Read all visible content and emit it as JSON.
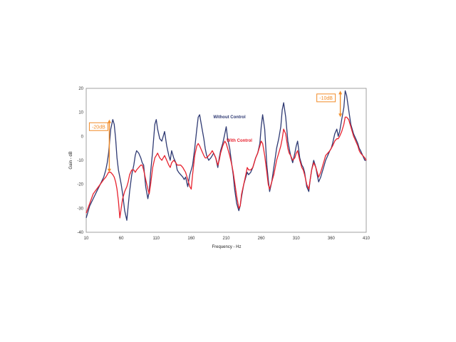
{
  "chart_data": {
    "type": "line",
    "title": "",
    "xlabel": "Frequency - Hz",
    "ylabel": "Gain - dB",
    "xlim": [
      10,
      410
    ],
    "ylim": [
      -40,
      20
    ],
    "xticks": [
      10,
      60,
      110,
      160,
      210,
      260,
      310,
      360,
      410
    ],
    "yticks": [
      -40,
      -30,
      -20,
      -10,
      0,
      10,
      20
    ],
    "minor_x_step": 10,
    "grid": true,
    "series": [
      {
        "name": "Without Control",
        "color": "#2f3a73",
        "x": [
          10,
          15,
          20,
          25,
          30,
          35,
          38,
          40,
          42,
          45,
          48,
          50,
          52,
          54,
          56,
          58,
          60,
          62,
          65,
          68,
          70,
          72,
          75,
          78,
          80,
          82,
          85,
          88,
          90,
          92,
          95,
          98,
          100,
          102,
          105,
          108,
          110,
          112,
          115,
          118,
          120,
          122,
          125,
          128,
          130,
          132,
          135,
          138,
          140,
          142,
          145,
          148,
          150,
          152,
          155,
          158,
          160,
          162,
          165,
          168,
          170,
          172,
          175,
          178,
          180,
          182,
          185,
          188,
          190,
          192,
          195,
          198,
          200,
          202,
          205,
          208,
          210,
          212,
          215,
          218,
          220,
          222,
          225,
          228,
          230,
          232,
          235,
          238,
          240,
          242,
          245,
          248,
          250,
          252,
          255,
          258,
          260,
          262,
          265,
          268,
          270,
          272,
          275,
          278,
          280,
          282,
          285,
          288,
          290,
          292,
          295,
          298,
          300,
          302,
          305,
          308,
          310,
          312,
          315,
          318,
          320,
          322,
          325,
          328,
          330,
          332,
          335,
          338,
          340,
          342,
          345,
          348,
          350,
          352,
          355,
          358,
          360,
          362,
          365,
          368,
          370,
          372,
          375,
          378,
          380,
          382,
          385,
          388,
          390,
          392,
          395,
          398,
          400,
          402,
          405,
          408,
          410
        ],
        "y": [
          -34,
          -29,
          -26,
          -23,
          -20,
          -17,
          -14,
          -11,
          -7,
          3,
          7,
          5,
          -1,
          -9,
          -14,
          -17,
          -20,
          -24,
          -31,
          -35,
          -29,
          -23,
          -16,
          -12,
          -8,
          -6,
          -7,
          -9,
          -11,
          -12,
          -21,
          -26,
          -23,
          -15,
          -6,
          5,
          7,
          3,
          -1,
          -2,
          0,
          2,
          -4,
          -8,
          -10,
          -6,
          -9,
          -11,
          -14,
          -15,
          -16,
          -17,
          -18,
          -17,
          -21,
          -16,
          -14,
          -12,
          -5,
          3,
          8,
          9,
          4,
          -1,
          -5,
          -8,
          -10,
          -9,
          -8,
          -7,
          -9,
          -13,
          -9,
          -6,
          -3,
          1,
          4,
          -1,
          -5,
          -12,
          -16,
          -22,
          -28,
          -31,
          -29,
          -25,
          -20,
          -17,
          -15,
          -16,
          -15,
          -13,
          -11,
          -9,
          -7,
          -3,
          4,
          9,
          3,
          -12,
          -18,
          -23,
          -19,
          -13,
          -9,
          -5,
          -1,
          4,
          11,
          14,
          8,
          -2,
          -5,
          -8,
          -11,
          -7,
          -4,
          -2,
          -9,
          -12,
          -13,
          -15,
          -21,
          -23,
          -18,
          -14,
          -10,
          -13,
          -16,
          -19,
          -17,
          -14,
          -12,
          -10,
          -8,
          -6,
          -5,
          -3,
          1,
          3,
          0,
          2,
          7,
          12,
          19,
          17,
          11,
          5,
          3,
          1,
          -1,
          -3,
          -5,
          -6,
          -8,
          -10,
          -10
        ]
      },
      {
        "name": "With Control",
        "color": "#e8222e",
        "x": [
          10,
          15,
          20,
          25,
          30,
          35,
          38,
          40,
          42,
          45,
          48,
          50,
          52,
          54,
          56,
          58,
          60,
          62,
          65,
          68,
          70,
          72,
          75,
          78,
          80,
          82,
          85,
          88,
          90,
          92,
          95,
          98,
          100,
          102,
          105,
          108,
          110,
          112,
          115,
          118,
          120,
          122,
          125,
          128,
          130,
          132,
          135,
          138,
          140,
          142,
          145,
          148,
          150,
          152,
          155,
          158,
          160,
          162,
          165,
          168,
          170,
          172,
          175,
          178,
          180,
          182,
          185,
          188,
          190,
          192,
          195,
          198,
          200,
          202,
          205,
          208,
          210,
          212,
          215,
          218,
          220,
          222,
          225,
          228,
          230,
          232,
          235,
          238,
          240,
          242,
          245,
          248,
          250,
          252,
          255,
          258,
          260,
          262,
          265,
          268,
          270,
          272,
          275,
          278,
          280,
          282,
          285,
          288,
          290,
          292,
          295,
          298,
          300,
          302,
          305,
          308,
          310,
          312,
          315,
          318,
          320,
          322,
          325,
          328,
          330,
          332,
          335,
          338,
          340,
          342,
          345,
          348,
          350,
          352,
          355,
          358,
          360,
          362,
          365,
          368,
          370,
          372,
          375,
          378,
          380,
          382,
          385,
          388,
          390,
          392,
          395,
          398,
          400,
          402,
          405,
          408,
          410
        ],
        "y": [
          -32,
          -28,
          -24,
          -22,
          -20,
          -18,
          -17,
          -16,
          -15,
          -15,
          -16,
          -17,
          -19,
          -22,
          -27,
          -34,
          -30,
          -26,
          -23,
          -21,
          -19,
          -16,
          -14,
          -14,
          -15,
          -14,
          -13,
          -12,
          -12,
          -14,
          -18,
          -22,
          -24,
          -20,
          -13,
          -9,
          -8,
          -7,
          -9,
          -10,
          -9,
          -8,
          -10,
          -12,
          -13,
          -11,
          -10,
          -11,
          -12,
          -12,
          -12,
          -13,
          -14,
          -15,
          -18,
          -21,
          -22,
          -16,
          -8,
          -4,
          -3,
          -4,
          -6,
          -8,
          -9,
          -9,
          -8,
          -7,
          -6,
          -7,
          -9,
          -12,
          -10,
          -7,
          -4,
          -2,
          -3,
          -5,
          -8,
          -12,
          -15,
          -19,
          -25,
          -30,
          -29,
          -24,
          -20,
          -16,
          -13,
          -14,
          -14,
          -13,
          -11,
          -9,
          -7,
          -4,
          -2,
          -3,
          -8,
          -15,
          -20,
          -22,
          -19,
          -16,
          -13,
          -10,
          -7,
          -4,
          -1,
          3,
          1,
          -5,
          -7,
          -8,
          -10,
          -9,
          -7,
          -6,
          -10,
          -13,
          -14,
          -16,
          -20,
          -22,
          -18,
          -14,
          -11,
          -13,
          -15,
          -17,
          -15,
          -12,
          -10,
          -8,
          -7,
          -6,
          -5,
          -4,
          -2,
          -1,
          -1,
          0,
          2,
          5,
          8,
          8,
          7,
          4,
          2,
          0,
          -2,
          -4,
          -6,
          -7,
          -8,
          -9,
          -10
        ]
      }
    ],
    "annotations": [
      {
        "text": "-20dB",
        "x": 43,
        "y_from": 7,
        "y_to": -15
      },
      {
        "text": "-10dB",
        "x": 373,
        "y_from": 19,
        "y_to": 8
      }
    ],
    "annotation_color": "#f28c28"
  }
}
